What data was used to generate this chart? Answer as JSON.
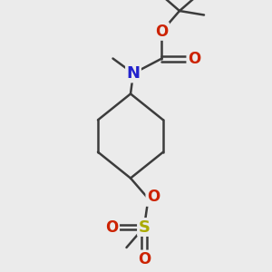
{
  "background_color": "#ebebeb",
  "bond_color": "#3c3c3c",
  "N_color": "#2222cc",
  "O_color": "#cc2200",
  "S_color": "#aaaa00",
  "C_color": "#3c3c3c",
  "bond_width": 1.8,
  "font_size_atom": 12,
  "fig_width": 3.0,
  "fig_height": 3.0,
  "dpi": 100,
  "xlim": [
    0,
    10
  ],
  "ylim": [
    0,
    10
  ]
}
